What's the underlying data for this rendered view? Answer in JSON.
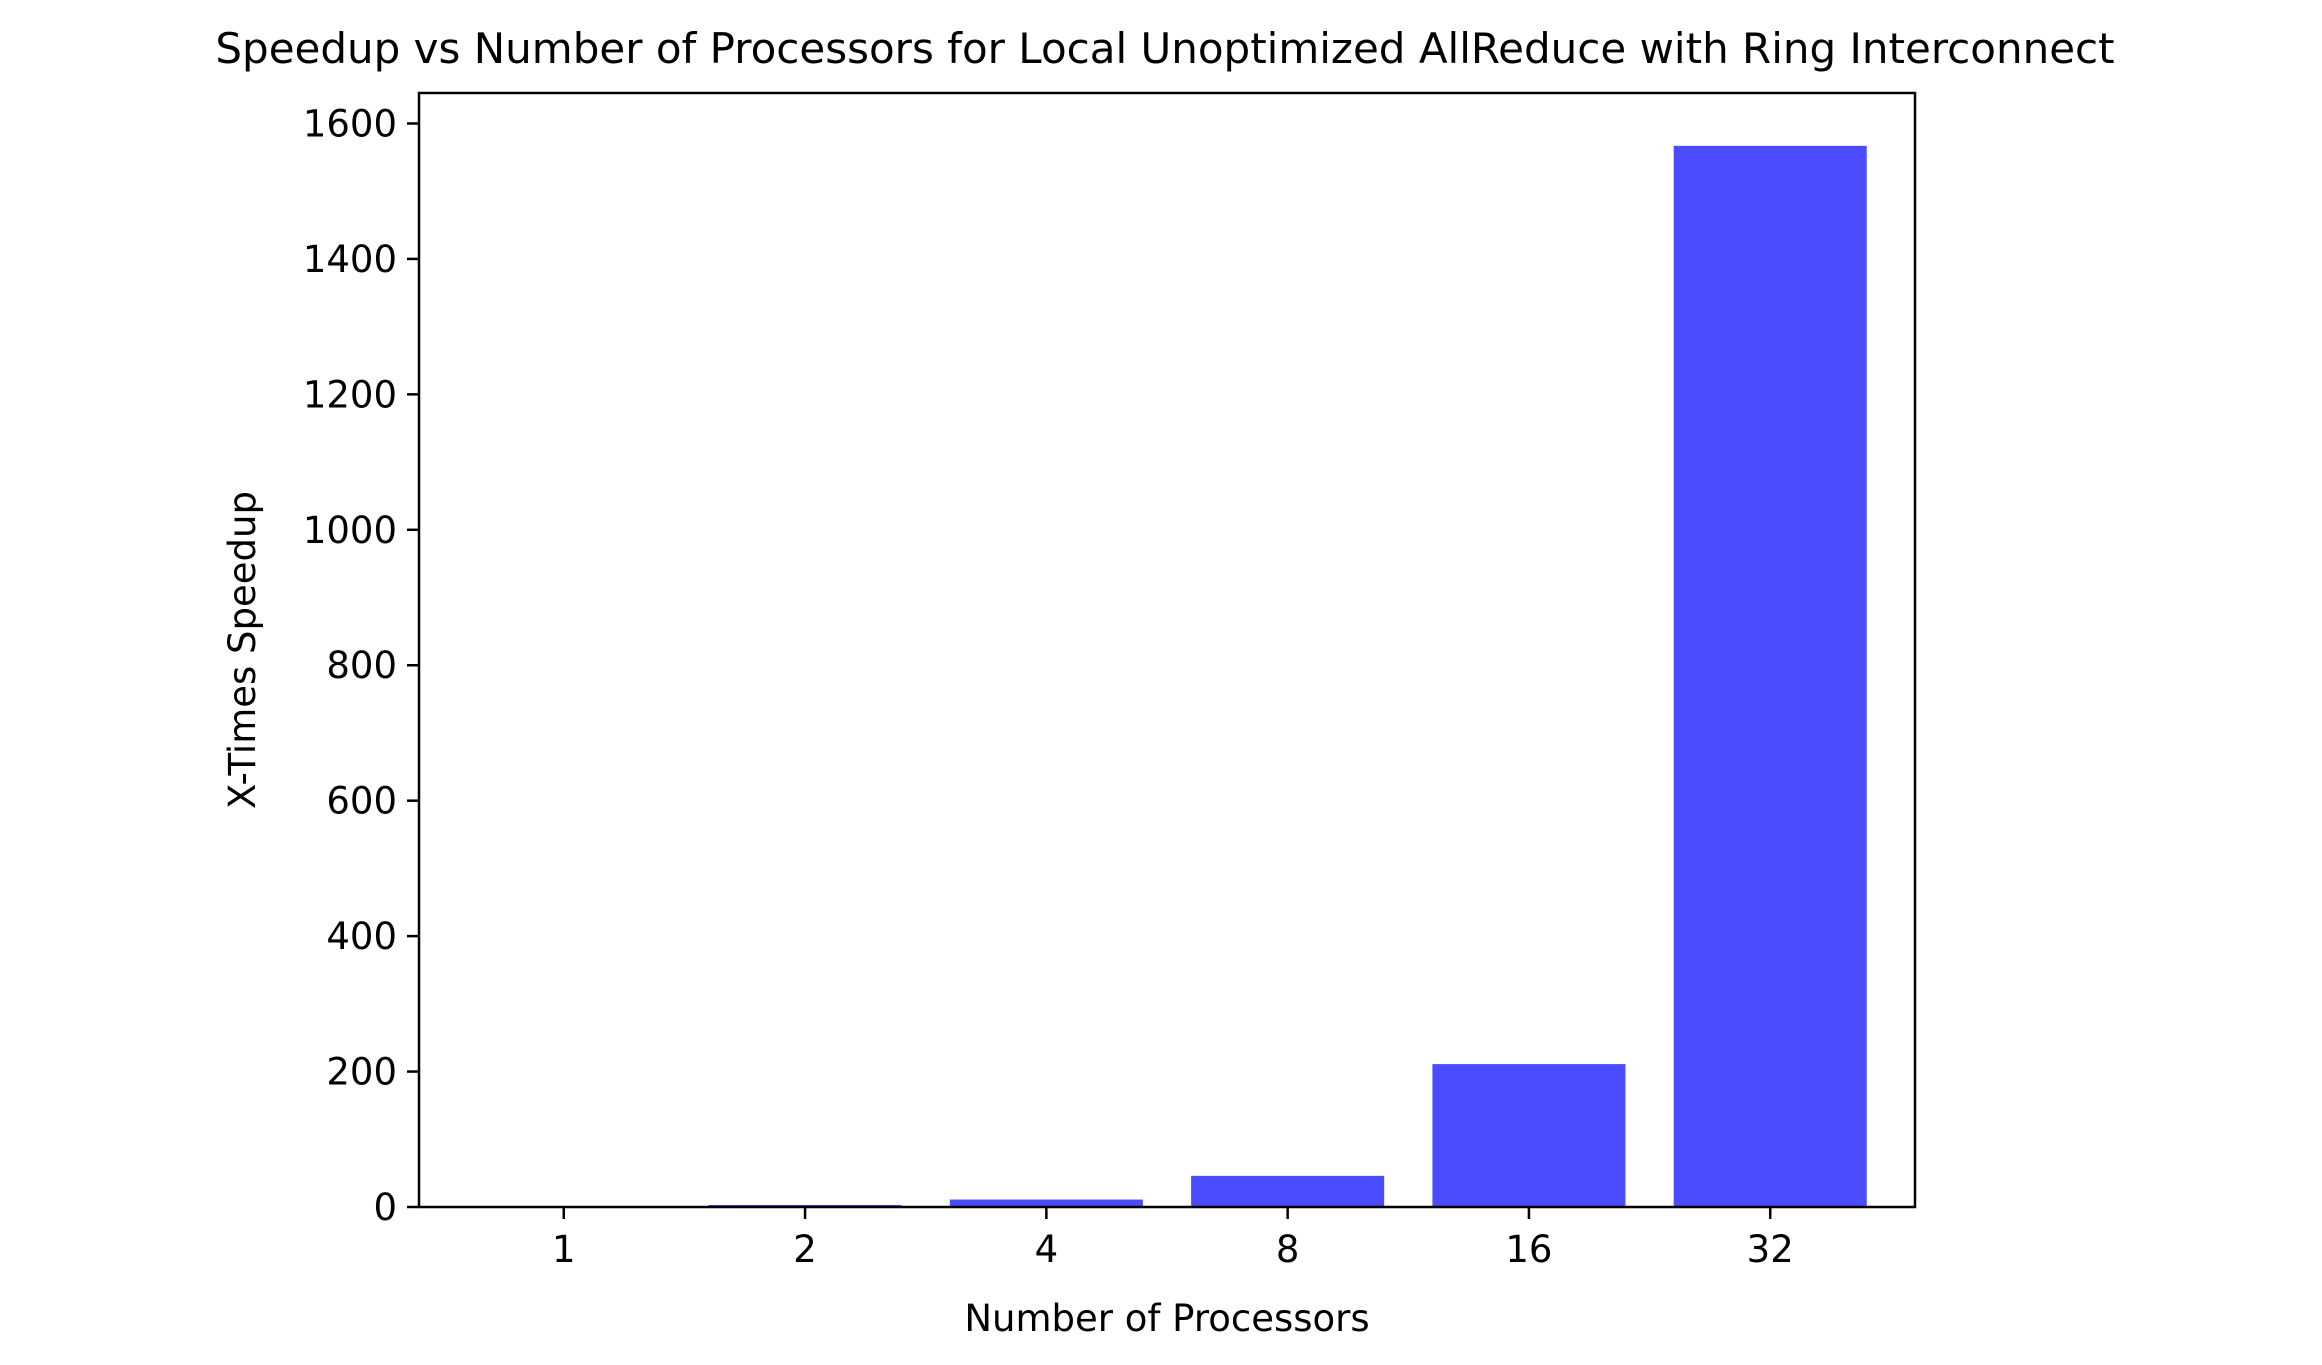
{
  "chart_data": {
    "type": "bar",
    "title": "Speedup vs Number of Processors for Local Unoptimized AllReduce with Ring Interconnect",
    "xlabel": "Number of Processors",
    "ylabel": "X-Times Speedup",
    "categories": [
      "1",
      "2",
      "4",
      "8",
      "16",
      "32"
    ],
    "values": [
      1,
      3,
      11,
      46,
      211,
      1567
    ],
    "ylim": [
      0,
      1645
    ],
    "yticks": [
      0,
      200,
      400,
      600,
      800,
      1000,
      1200,
      1400,
      1600
    ],
    "bar_color": "#4b4bff",
    "grid": false,
    "legend": "none"
  }
}
